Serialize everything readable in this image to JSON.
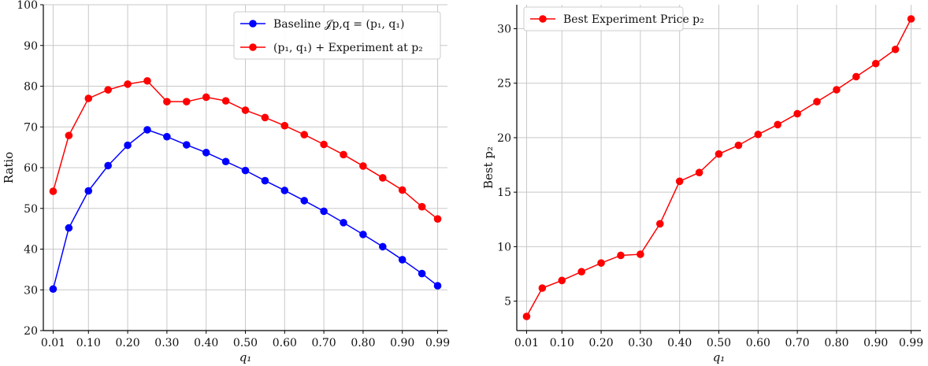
{
  "chart_data": [
    {
      "type": "line",
      "xlabel": "q₁",
      "ylabel": "Ratio",
      "x": [
        0.01,
        0.05,
        0.1,
        0.15,
        0.2,
        0.25,
        0.3,
        0.35,
        0.4,
        0.45,
        0.5,
        0.55,
        0.6,
        0.65,
        0.7,
        0.75,
        0.8,
        0.85,
        0.9,
        0.95,
        0.99
      ],
      "xticks": [
        "0.01",
        "0.10",
        "0.20",
        "0.30",
        "0.40",
        "0.50",
        "0.60",
        "0.70",
        "0.80",
        "0.90",
        "0.99"
      ],
      "xlim": [
        -0.015,
        1.015
      ],
      "ylim": [
        20,
        100
      ],
      "yticks": [
        "20",
        "30",
        "40",
        "50",
        "60",
        "70",
        "80",
        "90",
        "100"
      ],
      "grid": true,
      "legend_position": "top-right",
      "series": [
        {
          "name": "Baseline 𝒥p,q = (p₁, q₁)",
          "color": "#0000ff",
          "values": [
            30.2,
            45.2,
            54.3,
            60.5,
            65.5,
            69.3,
            67.6,
            65.6,
            63.7,
            61.5,
            59.3,
            56.8,
            54.4,
            51.9,
            49.3,
            46.5,
            43.6,
            40.6,
            37.4,
            34.0,
            31.0
          ]
        },
        {
          "name": "(p₁, q₁) + Experiment at p₂",
          "color": "#ff0000",
          "values": [
            54.2,
            67.9,
            77.0,
            79.1,
            80.5,
            81.3,
            76.2,
            76.2,
            77.3,
            76.4,
            74.1,
            72.3,
            70.3,
            68.1,
            65.7,
            63.2,
            60.4,
            57.5,
            54.5,
            50.4,
            47.4
          ]
        }
      ]
    },
    {
      "type": "line",
      "xlabel": "q₁",
      "ylabel": "Best p₂",
      "x": [
        0.01,
        0.05,
        0.1,
        0.15,
        0.2,
        0.25,
        0.3,
        0.35,
        0.4,
        0.45,
        0.5,
        0.55,
        0.6,
        0.65,
        0.7,
        0.75,
        0.8,
        0.85,
        0.9,
        0.95,
        0.99
      ],
      "xticks": [
        "0.01",
        "0.10",
        "0.20",
        "0.30",
        "0.40",
        "0.50",
        "0.60",
        "0.70",
        "0.80",
        "0.90",
        "0.99"
      ],
      "xlim": [
        -0.015,
        1.015
      ],
      "ylim": [
        2.3,
        32.2
      ],
      "yticks": [
        "5",
        "10",
        "15",
        "20",
        "25",
        "30"
      ],
      "grid": true,
      "legend_position": "top-left",
      "series": [
        {
          "name": "Best Experiment Price p₂",
          "color": "#ff0000",
          "values": [
            3.6,
            6.2,
            6.9,
            7.7,
            8.5,
            9.2,
            9.3,
            12.1,
            16.0,
            16.8,
            18.5,
            19.3,
            20.3,
            21.2,
            22.2,
            23.3,
            24.4,
            25.6,
            26.8,
            28.1,
            30.9
          ]
        }
      ]
    }
  ]
}
